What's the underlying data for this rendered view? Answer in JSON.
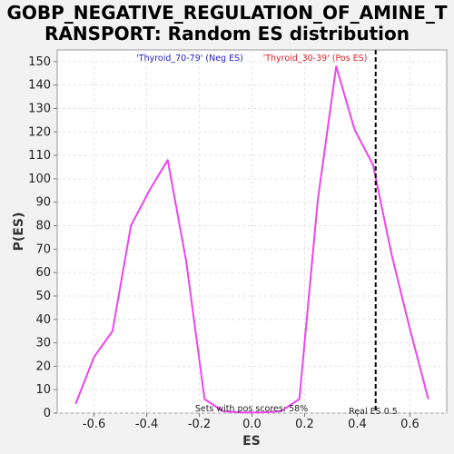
{
  "chart_data": {
    "type": "line",
    "title_line1": "GOBP_NEGATIVE_REGULATION_OF_AMINE_T",
    "title_line2": "RANSPORT: Random ES distribution",
    "xlabel": "ES",
    "ylabel": "P(ES)",
    "xlim": [
      -0.74,
      0.74
    ],
    "ylim": [
      0,
      155
    ],
    "xticks": [
      -0.6,
      -0.4,
      -0.2,
      0.0,
      0.2,
      0.4,
      0.6
    ],
    "xtick_labels": [
      "-0.6",
      "-0.4",
      "-0.2",
      "0.0",
      "0.2",
      "0.4",
      "0.6"
    ],
    "yticks": [
      0,
      10,
      20,
      30,
      40,
      50,
      60,
      70,
      80,
      90,
      100,
      110,
      120,
      130,
      140,
      150
    ],
    "ytick_labels": [
      "0",
      "10",
      "20",
      "30",
      "40",
      "50",
      "60",
      "70",
      "80",
      "90",
      "100",
      "110",
      "120",
      "130",
      "140",
      "150"
    ],
    "grid": true,
    "legend_neg": "'Thyroid_70-79' (Neg ES)",
    "legend_pos": "'Thyroid_30-39' (Pos ES)",
    "legend_neg_color": "#2222cc",
    "legend_pos_color": "#dd2222",
    "line_color": "#ee44ee",
    "real_es": 0.47,
    "real_es_label": "Real ES 0.5",
    "pos_scores_label": "Sets with pos scores: 58%",
    "series": [
      {
        "x": [
          -0.67,
          -0.6,
          -0.53,
          -0.46,
          -0.39,
          -0.32,
          -0.25,
          -0.18,
          -0.11,
          -0.04,
          0.04,
          0.11,
          0.18,
          0.25,
          0.32,
          0.39,
          0.46,
          0.53,
          0.6,
          0.67
        ],
        "y": [
          4,
          24,
          35,
          80,
          95,
          108,
          65,
          6,
          0.8,
          0.3,
          0.3,
          0.8,
          6,
          91,
          148,
          121,
          106,
          68,
          36,
          6
        ]
      }
    ]
  }
}
